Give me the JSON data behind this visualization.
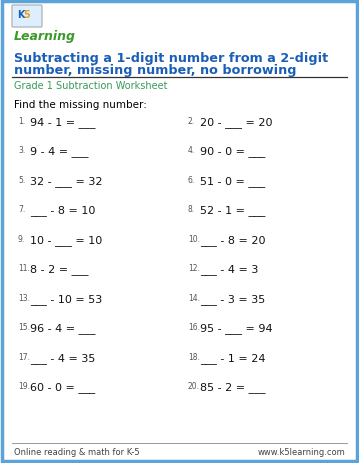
{
  "title_line1": "Subtracting a 1-digit number from a 2-digit",
  "title_line2": "number, missing number, no borrowing",
  "subtitle": "Grade 1 Subtraction Worksheet",
  "instruction": "Find the missing number:",
  "title_color": "#1a5eb8",
  "subtitle_color": "#3a9a5c",
  "border_color": "#5ba3d9",
  "bg_color": "#ffffff",
  "footer_left": "Online reading & math for K-5",
  "footer_right": "www.k5learning.com",
  "problems_left": [
    {
      "num": "1.",
      "text": "94 - 1 = ___"
    },
    {
      "num": "3.",
      "text": "9 - 4 = ___"
    },
    {
      "num": "5.",
      "text": "32 - ___ = 32"
    },
    {
      "num": "7.",
      "text": "___ - 8 = 10"
    },
    {
      "num": "9.",
      "text": "10 - ___ = 10"
    },
    {
      "num": "11.",
      "text": "8 - 2 = ___"
    },
    {
      "num": "13.",
      "text": "___ - 10 = 53"
    },
    {
      "num": "15.",
      "text": "96 - 4 = ___"
    },
    {
      "num": "17.",
      "text": "___ - 4 = 35"
    },
    {
      "num": "19.",
      "text": "60 - 0 = ___"
    }
  ],
  "problems_right": [
    {
      "num": "2.",
      "text": "20 - ___ = 20"
    },
    {
      "num": "4.",
      "text": "90 - 0 = ___"
    },
    {
      "num": "6.",
      "text": "51 - 0 = ___"
    },
    {
      "num": "8.",
      "text": "52 - 1 = ___"
    },
    {
      "num": "10.",
      "text": "___ - 8 = 20"
    },
    {
      "num": "12.",
      "text": "___ - 4 = 3"
    },
    {
      "num": "14.",
      "text": "___ - 3 = 35"
    },
    {
      "num": "16.",
      "text": "95 - ___ = 94"
    },
    {
      "num": "18.",
      "text": "___ - 1 = 24"
    },
    {
      "num": "20.",
      "text": "85 - 2 = ___"
    }
  ]
}
